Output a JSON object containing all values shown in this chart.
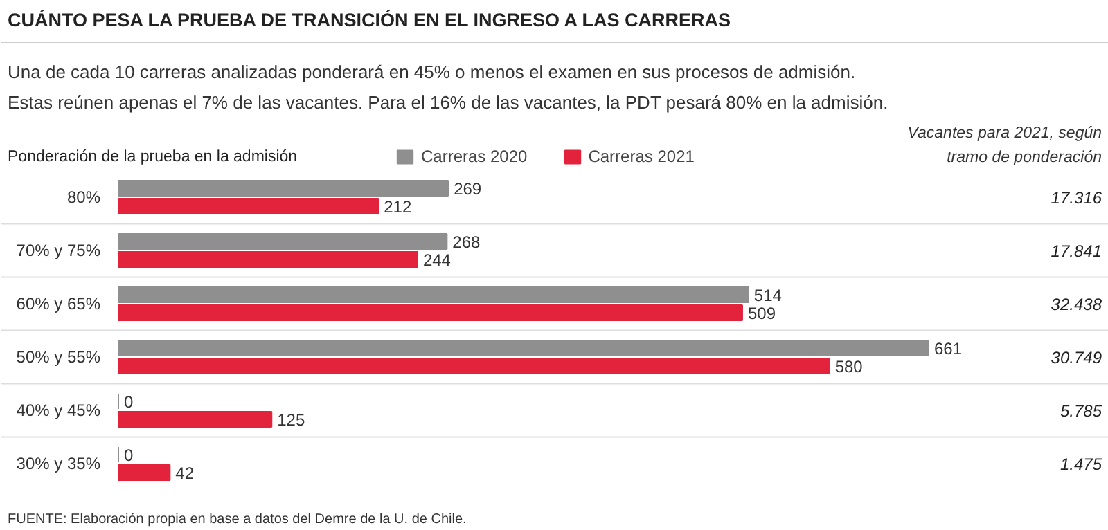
{
  "chart_data": {
    "type": "bar",
    "orientation": "horizontal",
    "title": "CUÁNTO PESA LA PRUEBA DE TRANSICIÓN EN EL INGRESO A LAS CARRERAS",
    "subtitle": "Una de cada 10 carreras analizadas ponderará en 45% o menos el examen en sus procesos de admisión.\nEstas reúnen apenas el 7% de las vacantes. Para el 16% de las vacantes, la PDT pesará 80% en la admisión.",
    "ylabel": "Ponderación de la prueba en la admisión",
    "categories": [
      "80%",
      "70% y 75%",
      "60% y 65%",
      "50% y 55%",
      "40% y 45%",
      "30% y 35%"
    ],
    "series": [
      {
        "name": "Carreras 2020",
        "color": "#8f8f8f",
        "values": [
          269,
          268,
          514,
          661,
          0,
          0
        ]
      },
      {
        "name": "Carreras 2021",
        "color": "#e3223c",
        "values": [
          212,
          244,
          509,
          580,
          125,
          42
        ]
      }
    ],
    "data_labels": true,
    "legend": "top",
    "grid": false,
    "annotations": [
      "Vacantes para 2021, según\ntramo de ponderación",
      "17.316",
      "17.841",
      "32.438",
      "30.749",
      "5.785",
      "1.475",
      "FUENTE: Elaboración propia en base a datos del Demre de la U. de Chile."
    ]
  }
}
